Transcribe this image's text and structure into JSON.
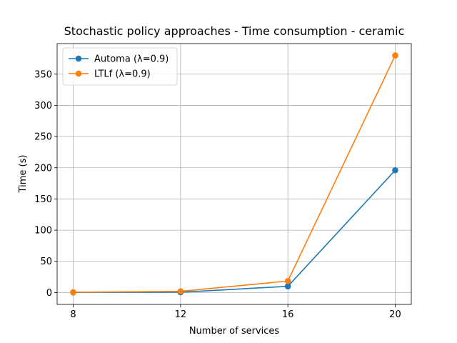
{
  "chart_data": {
    "type": "line",
    "title": "Stochastic policy approaches - Time consumption - ceramic",
    "xlabel": "Number of services",
    "ylabel": "Time (s)",
    "x": [
      8,
      12,
      16,
      20
    ],
    "xticks": [
      8,
      12,
      16,
      20
    ],
    "xlim": [
      7.4,
      20.6
    ],
    "yticks": [
      0,
      50,
      100,
      150,
      200,
      250,
      300,
      350
    ],
    "ylim": [
      -19,
      399
    ],
    "grid": true,
    "legend_position": "upper-left",
    "series": [
      {
        "name": "Automa (λ=0.9)",
        "color": "#1f77b4",
        "values": [
          0.3,
          0.5,
          10,
          196
        ]
      },
      {
        "name": "LTLf (λ=0.9)",
        "color": "#ff7f0e",
        "values": [
          0.5,
          2,
          18.5,
          380
        ]
      }
    ]
  }
}
